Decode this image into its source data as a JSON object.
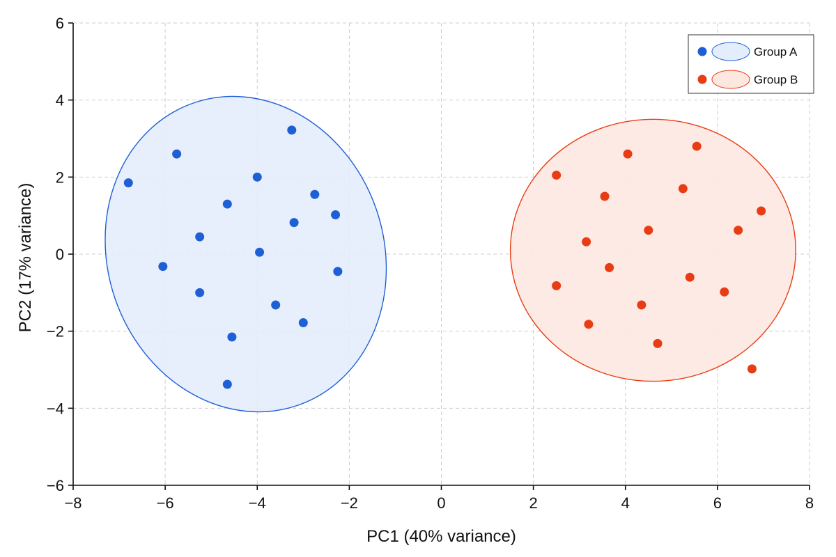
{
  "chart_data": {
    "type": "scatter",
    "title": "",
    "xlabel": "PC1 (40% variance)",
    "ylabel": "PC2 (17% variance)",
    "xlim": [
      -8,
      8
    ],
    "ylim": [
      -6,
      6
    ],
    "x_ticks": [
      -8,
      -6,
      -4,
      -2,
      0,
      2,
      4,
      6,
      8
    ],
    "y_ticks": [
      -6,
      -4,
      -2,
      0,
      2,
      4,
      6
    ],
    "x_tick_labels": [
      "−8",
      "−6",
      "−4",
      "−2",
      "0",
      "2",
      "4",
      "6",
      "8"
    ],
    "y_tick_labels": [
      "−6",
      "−4",
      "−2",
      "0",
      "2",
      "4",
      "6"
    ],
    "grid": true,
    "legend_position": "top-right",
    "series": [
      {
        "name": "Group A",
        "color": "#1f5fd6",
        "fill": "#e3edfb",
        "points": [
          {
            "x": -6.8,
            "y": 1.85
          },
          {
            "x": -5.75,
            "y": 2.6
          },
          {
            "x": -6.05,
            "y": -0.32
          },
          {
            "x": -5.25,
            "y": 0.45
          },
          {
            "x": -5.25,
            "y": -1.0
          },
          {
            "x": -4.65,
            "y": 1.3
          },
          {
            "x": -4.0,
            "y": 2.0
          },
          {
            "x": -3.25,
            "y": 3.22
          },
          {
            "x": -3.2,
            "y": 0.82
          },
          {
            "x": -3.95,
            "y": 0.05
          },
          {
            "x": -2.75,
            "y": 1.55
          },
          {
            "x": -2.3,
            "y": 1.02
          },
          {
            "x": -2.25,
            "y": -0.45
          },
          {
            "x": -3.6,
            "y": -1.32
          },
          {
            "x": -3.0,
            "y": -1.78
          },
          {
            "x": -4.55,
            "y": -2.15
          },
          {
            "x": -4.65,
            "y": -3.38
          }
        ],
        "ellipse": {
          "cx": -4.25,
          "cy": 0.0,
          "rx": 3.0,
          "ry": 4.15,
          "angle_deg": -19
        }
      },
      {
        "name": "Group B",
        "color": "#e83c14",
        "fill": "#fde8e1",
        "points": [
          {
            "x": 2.5,
            "y": 2.05
          },
          {
            "x": 4.05,
            "y": 2.6
          },
          {
            "x": 5.55,
            "y": 2.8
          },
          {
            "x": 3.55,
            "y": 1.5
          },
          {
            "x": 5.25,
            "y": 1.7
          },
          {
            "x": 6.95,
            "y": 1.12
          },
          {
            "x": 6.45,
            "y": 0.62
          },
          {
            "x": 4.5,
            "y": 0.62
          },
          {
            "x": 3.15,
            "y": 0.32
          },
          {
            "x": 3.65,
            "y": -0.35
          },
          {
            "x": 5.4,
            "y": -0.6
          },
          {
            "x": 2.5,
            "y": -0.82
          },
          {
            "x": 6.15,
            "y": -0.98
          },
          {
            "x": 4.35,
            "y": -1.32
          },
          {
            "x": 3.2,
            "y": -1.82
          },
          {
            "x": 4.7,
            "y": -2.32
          },
          {
            "x": 6.75,
            "y": -2.98
          }
        ],
        "ellipse": {
          "cx": 4.6,
          "cy": 0.1,
          "rx": 3.1,
          "ry": 3.4,
          "angle_deg": 0
        }
      }
    ]
  }
}
